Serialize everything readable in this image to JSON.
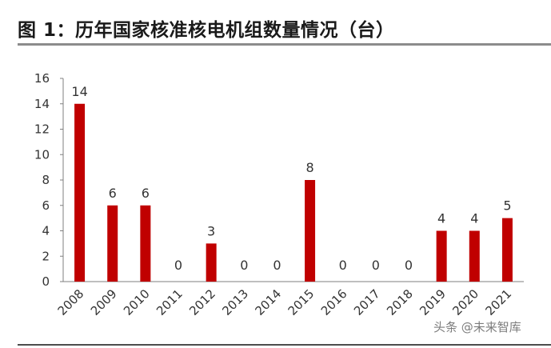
{
  "title": "图 1：历年国家核准核电机组数量情况（台）",
  "watermark": "头条 @未来智库",
  "colors": {
    "bar": "#c00000",
    "axis": "#7f7f7f",
    "text": "#333333"
  },
  "chart_data": {
    "type": "bar",
    "title": "图 1：历年国家核准核电机组数量情况（台）",
    "xlabel": "",
    "ylabel": "",
    "categories": [
      "2008",
      "2009",
      "2010",
      "2011",
      "2012",
      "2013",
      "2014",
      "2015",
      "2016",
      "2017",
      "2018",
      "2019",
      "2020",
      "2021"
    ],
    "values": [
      14,
      6,
      6,
      0,
      3,
      0,
      0,
      8,
      0,
      0,
      0,
      4,
      4,
      5
    ],
    "ylim": [
      0,
      16
    ],
    "yticks": [
      0,
      2,
      4,
      6,
      8,
      10,
      12,
      14,
      16
    ],
    "data_labels": true,
    "grid": false,
    "legend": "none"
  }
}
